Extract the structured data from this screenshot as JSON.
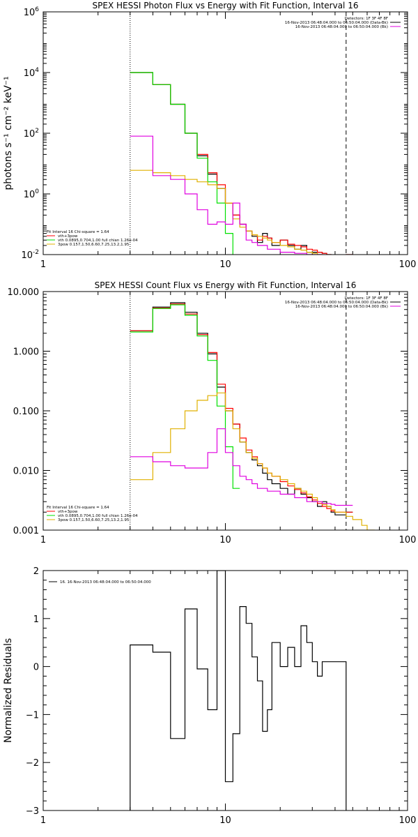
{
  "chart_data": [
    {
      "type": "line",
      "title": "SPEX HESSI Photon Flux vs Energy with Fit Function, Interval 16",
      "ylabel": "photons s⁻¹ cm⁻² keV⁻¹",
      "xlabel": "",
      "xscale": "log",
      "yscale": "log",
      "xlim": [
        1,
        100
      ],
      "ylim": [
        0.01,
        1000000
      ],
      "grid": false,
      "x_ticks": [
        {
          "v": 1,
          "label": "1"
        },
        {
          "v": 10,
          "label": "10"
        },
        {
          "v": 100,
          "label": "100"
        }
      ],
      "y_ticks": [
        {
          "v": 0.01,
          "base": "10",
          "exp": "-2"
        },
        {
          "v": 1,
          "base": "10",
          "exp": "0"
        },
        {
          "v": 100,
          "base": "10",
          "exp": "2"
        },
        {
          "v": 10000,
          "base": "10",
          "exp": "4"
        },
        {
          "v": 1000000,
          "base": "10",
          "exp": "6"
        }
      ],
      "vlines": [
        {
          "x": 3,
          "style": "dotted"
        },
        {
          "x": 46,
          "style": "dashed"
        }
      ],
      "legend_tr": [
        {
          "text": "Detectors: 1F 3F 4F 8F",
          "color": ""
        },
        {
          "text": "16-Nov-2013 06:48:04.000 to 06:50:04.000 (Data-Bk)",
          "color": "#000000"
        },
        {
          "text": "16-Nov-2013 06:48:04.000 to 06:50:04.000 (Bk)",
          "color": "#e000e0"
        }
      ],
      "legend_bl": [
        {
          "text": "Fit Interval 16    Chi-square = 1.64",
          "color": ""
        },
        {
          "text": "vth+3pow",
          "color": "#ff0000"
        },
        {
          "text": "vth 0.0895,0.704,1.00  full chian 1.26e-04",
          "color": "#00e000"
        },
        {
          "text": "3pow 0.157,1.50,6.60,7.25,13.2,1.95",
          "color": "#e0b000"
        }
      ],
      "edges": [
        3,
        4,
        5,
        6,
        7,
        8,
        9,
        10,
        11,
        12,
        13,
        14,
        15,
        16,
        17,
        18,
        20,
        22,
        24,
        26,
        28,
        30,
        32,
        34,
        36,
        38,
        40,
        46,
        50,
        56,
        60,
        66
      ],
      "series": [
        {
          "name": "Data-Bk",
          "color": "#000000",
          "values": [
            10000,
            4000,
            900,
            100,
            18,
            4.5,
            1.5,
            0.5,
            0.2,
            0.1,
            0.06,
            0.04,
            0.025,
            0.05,
            0.035,
            0.02,
            0.03,
            0.02,
            0.015,
            0.02,
            0.012,
            0.012,
            0.012,
            0.011,
            0.01,
            0.009,
            0.007,
            0.01
          ]
        },
        {
          "name": "vth+3pow",
          "color": "#ff0000",
          "values": [
            10000,
            4000,
            900,
            100,
            20,
            5,
            2,
            0.5,
            0.2,
            0.1,
            0.06,
            0.045,
            0.03,
            0.04,
            0.035,
            0.025,
            0.03,
            0.022,
            0.02,
            0.018,
            0.015,
            0.014,
            0.012,
            0.011,
            0.01,
            0.009,
            0.008,
            0.01
          ]
        },
        {
          "name": "vth",
          "color": "#00e000",
          "values": [
            10000,
            4000,
            900,
            100,
            15,
            2.5,
            0.5,
            0.05,
            0.005
          ]
        },
        {
          "name": "3pow",
          "color": "#e0b000",
          "values": [
            6,
            5,
            4,
            3,
            2.5,
            2,
            1.5,
            0.5,
            0.15,
            0.08,
            0.06,
            0.045,
            0.04,
            0.035,
            0.03,
            0.025,
            0.02,
            0.018,
            0.015,
            0.014,
            0.012,
            0.011,
            0.01,
            0.009,
            0.008,
            0.007,
            0.006
          ]
        },
        {
          "name": "Bk",
          "color": "#e000e0",
          "values": [
            80,
            4,
            3,
            1,
            0.3,
            0.1,
            0.12,
            0.1,
            0.5,
            0.1,
            0.03,
            0.025,
            0.02,
            0.02,
            0.015,
            0.015,
            0.012,
            0.012,
            0.011,
            0.011,
            0.01,
            0.01,
            0.01,
            0.009,
            0.009,
            0.009,
            0.008
          ]
        }
      ]
    },
    {
      "type": "line",
      "title": "SPEX HESSI Count Flux vs Energy with Fit Function, Interval 16",
      "ylabel": "",
      "xlabel": "",
      "xscale": "log",
      "yscale": "log",
      "xlim": [
        1,
        100
      ],
      "ylim": [
        0.001,
        10
      ],
      "grid": false,
      "x_ticks": [
        {
          "v": 1,
          "label": "1"
        },
        {
          "v": 10,
          "label": "10"
        },
        {
          "v": 100,
          "label": "100"
        }
      ],
      "y_ticks": [
        {
          "v": 0.001,
          "label": "0.001"
        },
        {
          "v": 0.01,
          "label": "0.010"
        },
        {
          "v": 0.1,
          "label": "0.100"
        },
        {
          "v": 1,
          "label": "1.000"
        },
        {
          "v": 10,
          "label": "10.000"
        }
      ],
      "vlines": [
        {
          "x": 3,
          "style": "dotted"
        },
        {
          "x": 46,
          "style": "dashed"
        }
      ],
      "legend_tr": [
        {
          "text": "Detectors: 1F 3F 4F 8F",
          "color": ""
        },
        {
          "text": "16-Nov-2013 06:48:04.000 to 06:50:04.000 (Data-Bk)",
          "color": "#000000"
        },
        {
          "text": "16-Nov-2013 06:48:04.000 to 06:50:04.000 (Bk)",
          "color": "#e000e0"
        }
      ],
      "legend_bl": [
        {
          "text": "Fit Interval 16    Chi-square = 1.64",
          "color": ""
        },
        {
          "text": "vth+3pow",
          "color": "#ff0000"
        },
        {
          "text": "vth 0.0895,0.704,1.00  full chian 1.26e-04",
          "color": "#00e000"
        },
        {
          "text": "3pow 0.157,1.50,6.60,7.25,13.2,1.95",
          "color": "#e0b000"
        }
      ],
      "edges": [
        3,
        4,
        5,
        6,
        7,
        8,
        9,
        10,
        11,
        12,
        13,
        14,
        15,
        16,
        17,
        18,
        20,
        22,
        24,
        26,
        28,
        30,
        32,
        34,
        36,
        38,
        40,
        46,
        50,
        56,
        60,
        66
      ],
      "series": [
        {
          "name": "Data-Bk",
          "color": "#000000",
          "values": [
            2.2,
            5.5,
            6.5,
            4.5,
            2.0,
            0.9,
            0.25,
            0.1,
            0.06,
            0.03,
            0.02,
            0.015,
            0.012,
            0.009,
            0.007,
            0.006,
            0.005,
            0.004,
            0.005,
            0.004,
            0.0035,
            0.003,
            0.0025,
            0.003,
            0.0025,
            0.002,
            0.0018,
            0.002
          ]
        },
        {
          "name": "vth+3pow",
          "color": "#ff0000",
          "values": [
            2.2,
            5.3,
            6.2,
            4.2,
            1.9,
            0.95,
            0.28,
            0.11,
            0.06,
            0.035,
            0.022,
            0.017,
            0.013,
            0.011,
            0.009,
            0.008,
            0.0065,
            0.0055,
            0.0048,
            0.0042,
            0.0036,
            0.0032,
            0.0028,
            0.0025,
            0.0023,
            0.0021,
            0.002,
            0.002
          ]
        },
        {
          "name": "vth",
          "color": "#00e000",
          "values": [
            2.1,
            5.2,
            6.0,
            4.0,
            1.8,
            0.7,
            0.12,
            0.025,
            0.005
          ]
        },
        {
          "name": "3pow",
          "color": "#e0b000",
          "values": [
            0.007,
            0.02,
            0.05,
            0.1,
            0.15,
            0.18,
            0.2,
            0.1,
            0.05,
            0.03,
            0.02,
            0.016,
            0.013,
            0.011,
            0.009,
            0.008,
            0.007,
            0.006,
            0.005,
            0.0045,
            0.004,
            0.0035,
            0.003,
            0.0027,
            0.0025,
            0.0022,
            0.002,
            0.0017,
            0.0015,
            0.0012,
            0.001
          ]
        },
        {
          "name": "Bk",
          "color": "#e000e0",
          "values": [
            0.017,
            0.014,
            0.012,
            0.011,
            0.011,
            0.02,
            0.05,
            0.02,
            0.012,
            0.008,
            0.007,
            0.006,
            0.005,
            0.005,
            0.0045,
            0.0045,
            0.004,
            0.004,
            0.0035,
            0.0035,
            0.003,
            0.003,
            0.003,
            0.0028,
            0.0028,
            0.0027,
            0.0026,
            0.0026
          ]
        }
      ]
    },
    {
      "type": "line",
      "title": "",
      "ylabel": "Normalized Residuals",
      "xlabel": "",
      "xscale": "log",
      "yscale": "linear",
      "xlim": [
        1,
        100
      ],
      "ylim": [
        -3,
        2
      ],
      "grid": false,
      "x_ticks": [
        {
          "v": 1,
          "label": "1"
        },
        {
          "v": 10,
          "label": "10"
        },
        {
          "v": 100,
          "label": "100"
        }
      ],
      "y_ticks": [
        {
          "v": -3,
          "label": "−3"
        },
        {
          "v": -2,
          "label": "−2"
        },
        {
          "v": -1,
          "label": "−1"
        },
        {
          "v": 0,
          "label": "0"
        },
        {
          "v": 1,
          "label": "1"
        },
        {
          "v": 2,
          "label": "2"
        }
      ],
      "vlines": [],
      "legend_tr": [],
      "legend_bl": [],
      "legend_tl": [
        {
          "text": "16. 16-Nov-2013 06:48:04.000 to 06:50:04.000",
          "color": "#000000"
        }
      ],
      "edges": [
        3,
        4,
        5,
        6,
        7,
        8,
        9,
        10,
        11,
        12,
        13,
        14,
        15,
        16,
        17,
        18,
        20,
        22,
        24,
        26,
        28,
        30,
        32,
        34,
        36,
        38,
        40,
        46
      ],
      "series": [
        {
          "name": "residuals",
          "color": "#000000",
          "close_to_bottom": true,
          "values": [
            0.45,
            0.3,
            -1.5,
            1.2,
            -0.05,
            -0.9,
            2.0,
            -2.4,
            -1.4,
            1.25,
            0.9,
            0.2,
            -0.3,
            -1.35,
            -0.9,
            0.5,
            0.0,
            0.4,
            0.0,
            0.85,
            0.5,
            0.1,
            -0.2,
            0.1,
            0.1,
            0.1,
            0.1
          ]
        }
      ]
    }
  ]
}
